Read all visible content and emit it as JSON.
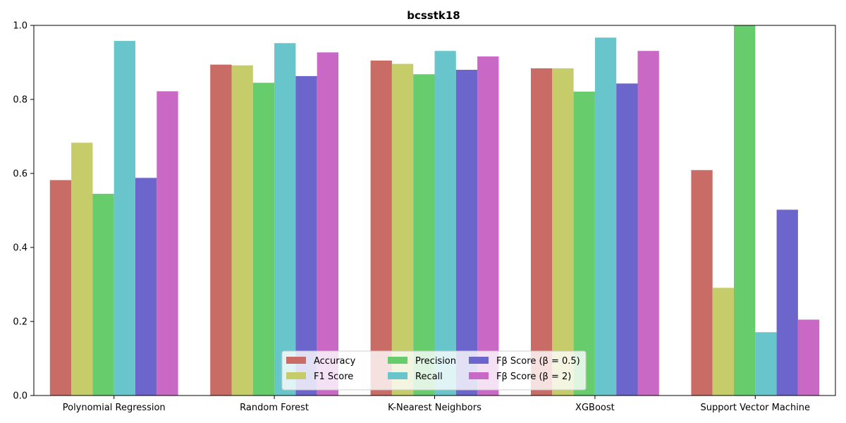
{
  "chart_data": {
    "type": "bar",
    "title": "bcsstk18",
    "xlabel": "",
    "ylabel": "",
    "ylim": [
      0,
      1.0
    ],
    "yticks": [
      "0.0",
      "0.2",
      "0.4",
      "0.6",
      "0.8",
      "1.0"
    ],
    "categories": [
      "Polynomial Regression",
      "Random Forest",
      "K-Nearest Neighbors",
      "XGBoost",
      "Support Vector Machine"
    ],
    "series": [
      {
        "name": "Accuracy",
        "color": "#c96c65",
        "values": [
          0.582,
          0.894,
          0.905,
          0.884,
          0.609
        ]
      },
      {
        "name": "F1 Score",
        "color": "#c5cc69",
        "values": [
          0.683,
          0.892,
          0.896,
          0.884,
          0.291
        ]
      },
      {
        "name": "Precision",
        "color": "#66cc6c",
        "values": [
          0.545,
          0.845,
          0.868,
          0.821,
          1.0
        ]
      },
      {
        "name": "Recall",
        "color": "#68c5cc",
        "values": [
          0.958,
          0.952,
          0.931,
          0.967,
          0.171
        ]
      },
      {
        "name": "Fβ Score (β = 0.5)",
        "color": "#6c66cc",
        "values": [
          0.588,
          0.863,
          0.88,
          0.843,
          0.502
        ]
      },
      {
        "name": "Fβ Score (β = 2)",
        "color": "#ca68c5",
        "values": [
          0.822,
          0.927,
          0.916,
          0.931,
          0.205
        ]
      }
    ],
    "legend": {
      "placement": "lower-center",
      "columns": 3
    },
    "grid": false
  }
}
